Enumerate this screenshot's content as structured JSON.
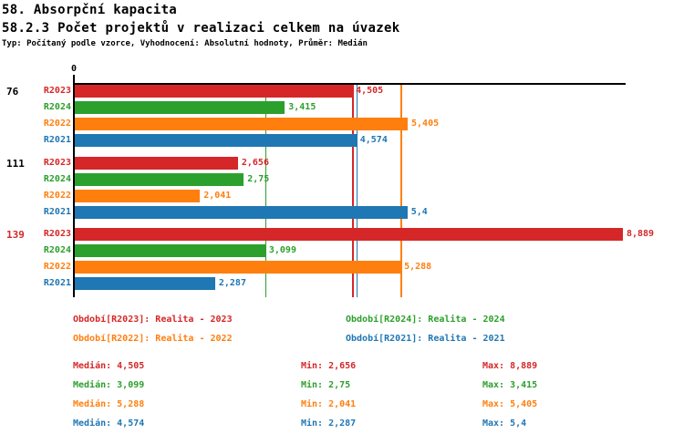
{
  "header": {
    "title": "58. Absorpční kapacita",
    "subtitle": "58.2.3 Počet projektů v realizaci celkem na úvazek",
    "meta": "Typ: Počítaný podle vzorce, Vyhodnocení: Absolutní hodnoty, Průměr: Medián"
  },
  "chart_data": {
    "type": "bar",
    "orientation": "horizontal",
    "x_origin_label": "0",
    "x_axis": {
      "min": 0,
      "max_visible": 8.93,
      "ticks": [
        "0"
      ],
      "grid": false
    },
    "series": [
      {
        "id": "R2023",
        "name": "Realita - 2023",
        "color": "#d62728",
        "median": 4.505,
        "min": 2.656,
        "max": 8.889
      },
      {
        "id": "R2024",
        "name": "Realita - 2024",
        "color": "#2ca02c",
        "median": 3.099,
        "min": 2.75,
        "max": 3.415
      },
      {
        "id": "R2022",
        "name": "Realita - 2022",
        "color": "#ff7f0e",
        "median": 5.288,
        "min": 2.041,
        "max": 5.405
      },
      {
        "id": "R2021",
        "name": "Realita - 2021",
        "color": "#1f77b4",
        "median": 4.574,
        "min": 2.287,
        "max": 5.4
      }
    ],
    "groups": [
      {
        "label": "76",
        "label_color": "#000000",
        "bars": [
          {
            "series": "R2023",
            "value": 4.505,
            "display": "4,505"
          },
          {
            "series": "R2024",
            "value": 3.415,
            "display": "3,415"
          },
          {
            "series": "R2022",
            "value": 5.405,
            "display": "5,405"
          },
          {
            "series": "R2021",
            "value": 4.574,
            "display": "4,574"
          }
        ]
      },
      {
        "label": "111",
        "label_color": "#000000",
        "bars": [
          {
            "series": "R2023",
            "value": 2.656,
            "display": "2,656"
          },
          {
            "series": "R2024",
            "value": 2.75,
            "display": "2,75"
          },
          {
            "series": "R2022",
            "value": 2.041,
            "display": "2,041"
          },
          {
            "series": "R2021",
            "value": 5.4,
            "display": "5,4"
          }
        ]
      },
      {
        "label": "139",
        "label_color": "#d62728",
        "bars": [
          {
            "series": "R2023",
            "value": 8.889,
            "display": "8,889"
          },
          {
            "series": "R2024",
            "value": 3.099,
            "display": "3,099"
          },
          {
            "series": "R2022",
            "value": 5.288,
            "display": "5,288"
          },
          {
            "series": "R2021",
            "value": 2.287,
            "display": "2,287"
          }
        ]
      }
    ],
    "median_lines": [
      {
        "series": "R2023",
        "value": 4.505
      },
      {
        "series": "R2024",
        "value": 3.099
      },
      {
        "series": "R2022",
        "value": 5.288
      },
      {
        "series": "R2021",
        "value": 4.574
      }
    ]
  },
  "legend": {
    "items": [
      {
        "text": "Období[R2023]: Realita - 2023",
        "color": "#d62728"
      },
      {
        "text": "Období[R2024]: Realita - 2024",
        "color": "#2ca02c"
      },
      {
        "text": "Období[R2022]: Realita - 2022",
        "color": "#ff7f0e"
      },
      {
        "text": "Období[R2021]: Realita - 2021",
        "color": "#1f77b4"
      }
    ]
  },
  "stats": {
    "rows": [
      {
        "color": "#d62728",
        "median_label": "Medián: 4,505",
        "min_label": "Min: 2,656",
        "max_label": "Max: 8,889"
      },
      {
        "color": "#2ca02c",
        "median_label": "Medián: 3,099",
        "min_label": "Min: 2,75",
        "max_label": "Max: 3,415"
      },
      {
        "color": "#ff7f0e",
        "median_label": "Medián: 5,288",
        "min_label": "Min: 2,041",
        "max_label": "Max: 5,405"
      },
      {
        "color": "#1f77b4",
        "median_label": "Medián: 4,574",
        "min_label": "Min: 2,287",
        "max_label": "Max: 5,4"
      }
    ]
  }
}
